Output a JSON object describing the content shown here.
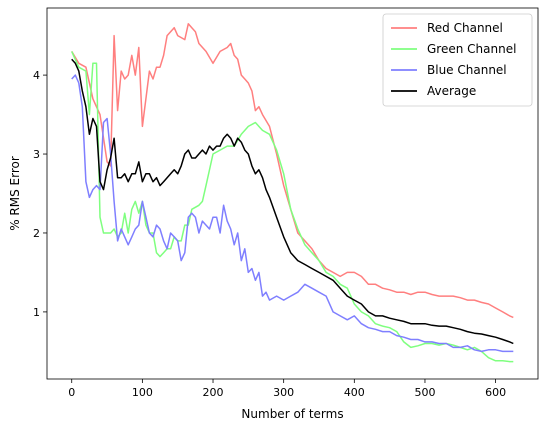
{
  "chart_data": {
    "type": "line",
    "title": "",
    "xlabel": "Number of terms",
    "ylabel": "% RMS Error",
    "xlim": [
      -35,
      660
    ],
    "ylim": [
      0.15,
      4.85
    ],
    "xticks": [
      0,
      100,
      200,
      300,
      400,
      500,
      600
    ],
    "yticks": [
      1,
      2,
      3,
      4
    ],
    "grid": false,
    "legend_position": "top-right",
    "series": [
      {
        "name": "Red Channel",
        "color": "#ff7f7f",
        "x": [
          0,
          10,
          20,
          30,
          40,
          50,
          55,
          60,
          65,
          70,
          75,
          80,
          85,
          90,
          95,
          100,
          105,
          110,
          115,
          120,
          125,
          130,
          135,
          140,
          145,
          150,
          160,
          165,
          170,
          175,
          180,
          190,
          200,
          210,
          220,
          225,
          230,
          235,
          240,
          245,
          250,
          255,
          260,
          265,
          270,
          280,
          290,
          300,
          310,
          320,
          330,
          340,
          350,
          360,
          370,
          380,
          390,
          400,
          410,
          420,
          430,
          440,
          450,
          460,
          470,
          480,
          490,
          500,
          510,
          520,
          530,
          540,
          550,
          560,
          570,
          580,
          590,
          600,
          610,
          620,
          625
        ],
        "values": [
          4.3,
          4.15,
          4.1,
          3.7,
          3.5,
          2.9,
          2.85,
          4.5,
          3.55,
          4.05,
          3.95,
          4.0,
          4.25,
          4.0,
          4.35,
          3.35,
          3.7,
          4.05,
          3.95,
          4.1,
          4.1,
          4.25,
          4.5,
          4.55,
          4.6,
          4.5,
          4.45,
          4.65,
          4.6,
          4.55,
          4.4,
          4.3,
          4.15,
          4.3,
          4.35,
          4.4,
          4.25,
          4.2,
          4.0,
          3.95,
          3.9,
          3.8,
          3.55,
          3.6,
          3.5,
          3.35,
          3.0,
          2.6,
          2.3,
          2.0,
          1.9,
          1.8,
          1.65,
          1.55,
          1.5,
          1.45,
          1.5,
          1.5,
          1.45,
          1.35,
          1.35,
          1.3,
          1.28,
          1.25,
          1.25,
          1.22,
          1.25,
          1.25,
          1.22,
          1.2,
          1.2,
          1.2,
          1.18,
          1.15,
          1.15,
          1.12,
          1.1,
          1.05,
          1.0,
          0.95,
          0.93
        ]
      },
      {
        "name": "Green Channel",
        "color": "#7fff7f",
        "x": [
          0,
          10,
          20,
          25,
          30,
          35,
          40,
          45,
          50,
          55,
          60,
          65,
          70,
          75,
          80,
          85,
          90,
          95,
          100,
          105,
          110,
          115,
          120,
          125,
          130,
          135,
          140,
          145,
          150,
          155,
          160,
          165,
          170,
          180,
          185,
          190,
          200,
          210,
          220,
          230,
          240,
          250,
          260,
          270,
          280,
          290,
          300,
          310,
          320,
          330,
          340,
          350,
          360,
          370,
          380,
          390,
          400,
          410,
          420,
          430,
          440,
          450,
          460,
          470,
          480,
          490,
          500,
          510,
          520,
          530,
          540,
          550,
          560,
          570,
          580,
          590,
          600,
          610,
          620,
          625
        ],
        "values": [
          4.3,
          4.1,
          4.05,
          3.5,
          4.15,
          4.15,
          2.2,
          2.0,
          2.0,
          2.0,
          2.05,
          1.95,
          2.0,
          2.25,
          2.0,
          2.3,
          2.4,
          2.25,
          2.4,
          2.1,
          2.0,
          2.0,
          1.75,
          1.7,
          1.75,
          1.8,
          1.8,
          1.95,
          1.9,
          1.9,
          2.1,
          2.1,
          2.3,
          2.35,
          2.4,
          2.6,
          3.0,
          3.05,
          3.1,
          3.1,
          3.25,
          3.35,
          3.4,
          3.3,
          3.25,
          3.05,
          2.75,
          2.3,
          2.05,
          1.85,
          1.75,
          1.65,
          1.5,
          1.45,
          1.35,
          1.3,
          1.1,
          1.0,
          0.95,
          0.85,
          0.82,
          0.8,
          0.75,
          0.62,
          0.55,
          0.57,
          0.6,
          0.6,
          0.58,
          0.6,
          0.58,
          0.55,
          0.52,
          0.55,
          0.5,
          0.42,
          0.38,
          0.38,
          0.37,
          0.37
        ]
      },
      {
        "name": "Blue Channel",
        "color": "#7f7fff",
        "x": [
          0,
          5,
          10,
          15,
          20,
          25,
          30,
          35,
          40,
          45,
          50,
          55,
          60,
          65,
          70,
          75,
          80,
          85,
          90,
          95,
          100,
          105,
          110,
          115,
          120,
          125,
          130,
          135,
          140,
          145,
          150,
          155,
          160,
          165,
          170,
          175,
          180,
          185,
          190,
          195,
          200,
          205,
          210,
          215,
          220,
          225,
          230,
          235,
          240,
          245,
          250,
          255,
          260,
          265,
          270,
          275,
          280,
          290,
          300,
          310,
          320,
          330,
          340,
          350,
          360,
          370,
          380,
          390,
          400,
          410,
          420,
          430,
          440,
          450,
          460,
          470,
          480,
          490,
          500,
          510,
          520,
          530,
          540,
          550,
          560,
          570,
          580,
          590,
          600,
          610,
          620,
          625
        ],
        "values": [
          3.95,
          4.0,
          3.9,
          3.6,
          2.65,
          2.45,
          2.55,
          2.6,
          2.55,
          3.4,
          3.45,
          3.0,
          2.4,
          1.9,
          2.05,
          1.95,
          1.85,
          1.95,
          2.05,
          2.1,
          2.4,
          2.2,
          2.0,
          1.95,
          2.1,
          2.05,
          1.9,
          1.8,
          2.0,
          1.95,
          1.9,
          1.65,
          1.75,
          2.2,
          2.25,
          2.2,
          2.0,
          2.15,
          2.1,
          2.05,
          2.2,
          2.2,
          2.0,
          2.35,
          2.15,
          2.05,
          1.85,
          2.0,
          1.65,
          1.8,
          1.5,
          1.55,
          1.4,
          1.5,
          1.2,
          1.25,
          1.15,
          1.2,
          1.15,
          1.2,
          1.25,
          1.35,
          1.3,
          1.25,
          1.2,
          1.0,
          0.95,
          0.9,
          0.95,
          0.85,
          0.8,
          0.78,
          0.75,
          0.75,
          0.7,
          0.68,
          0.65,
          0.65,
          0.62,
          0.62,
          0.6,
          0.6,
          0.55,
          0.55,
          0.57,
          0.52,
          0.5,
          0.52,
          0.52,
          0.5,
          0.5,
          0.5
        ]
      },
      {
        "name": "Average",
        "color": "#000000",
        "x": [
          0,
          5,
          10,
          15,
          20,
          25,
          30,
          35,
          40,
          45,
          50,
          55,
          60,
          65,
          70,
          75,
          80,
          85,
          90,
          95,
          100,
          105,
          110,
          115,
          120,
          125,
          130,
          135,
          140,
          145,
          150,
          155,
          160,
          165,
          170,
          175,
          180,
          185,
          190,
          195,
          200,
          205,
          210,
          215,
          220,
          225,
          230,
          235,
          240,
          245,
          250,
          255,
          260,
          265,
          270,
          275,
          280,
          290,
          300,
          310,
          320,
          330,
          340,
          350,
          360,
          370,
          380,
          390,
          400,
          410,
          420,
          430,
          440,
          450,
          460,
          470,
          480,
          490,
          500,
          510,
          520,
          530,
          540,
          550,
          560,
          570,
          580,
          590,
          600,
          610,
          620,
          625
        ],
        "values": [
          4.2,
          4.15,
          4.05,
          3.8,
          3.6,
          3.25,
          3.45,
          3.35,
          2.65,
          2.55,
          2.8,
          2.95,
          3.2,
          2.7,
          2.7,
          2.75,
          2.65,
          2.75,
          2.75,
          2.9,
          2.65,
          2.75,
          2.75,
          2.65,
          2.7,
          2.6,
          2.65,
          2.7,
          2.75,
          2.8,
          2.75,
          2.85,
          3.0,
          3.05,
          2.95,
          2.95,
          3.0,
          3.05,
          3.0,
          3.1,
          3.05,
          3.1,
          3.1,
          3.2,
          3.25,
          3.2,
          3.1,
          3.2,
          3.15,
          3.05,
          3.0,
          2.85,
          2.75,
          2.8,
          2.7,
          2.55,
          2.45,
          2.2,
          1.95,
          1.75,
          1.65,
          1.6,
          1.55,
          1.5,
          1.45,
          1.4,
          1.3,
          1.2,
          1.15,
          1.1,
          1.0,
          0.95,
          0.95,
          0.92,
          0.9,
          0.88,
          0.85,
          0.85,
          0.85,
          0.83,
          0.82,
          0.82,
          0.8,
          0.78,
          0.75,
          0.73,
          0.72,
          0.7,
          0.68,
          0.65,
          0.62,
          0.6
        ]
      }
    ]
  }
}
